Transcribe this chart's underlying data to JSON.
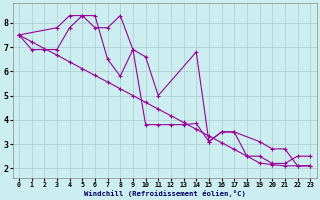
{
  "xlabel": "Windchill (Refroidissement éolien,°C)",
  "bg_color": "#cceef0",
  "grid_color": "#aacccc",
  "line_color": "#990099",
  "xlim": [
    -0.5,
    23.5
  ],
  "ylim": [
    1.6,
    8.8
  ],
  "yticks": [
    2,
    3,
    4,
    5,
    6,
    7,
    8
  ],
  "xticks": [
    0,
    1,
    2,
    3,
    4,
    5,
    6,
    7,
    8,
    9,
    10,
    11,
    12,
    13,
    14,
    15,
    16,
    17,
    18,
    19,
    20,
    21,
    22,
    23
  ],
  "series": [
    {
      "x": [
        0,
        1,
        2,
        3,
        4,
        5,
        6,
        7,
        8,
        9,
        10,
        11,
        12,
        13,
        14,
        15,
        16,
        17,
        18,
        19,
        20,
        21,
        22,
        23
      ],
      "y": [
        7.5,
        6.9,
        6.9,
        6.9,
        7.8,
        8.3,
        8.3,
        6.5,
        5.8,
        6.9,
        3.8,
        3.8,
        3.8,
        3.8,
        3.85,
        3.1,
        3.5,
        3.5,
        2.5,
        2.5,
        2.2,
        2.2,
        2.5,
        2.5
      ]
    },
    {
      "x": [
        0,
        1,
        2,
        3,
        4,
        5,
        6,
        7,
        8,
        9,
        10,
        11,
        12,
        13,
        14,
        15,
        16,
        17,
        18,
        19,
        20,
        21,
        22,
        23
      ],
      "y": [
        7.5,
        7.22,
        6.94,
        6.67,
        6.39,
        6.11,
        5.83,
        5.56,
        5.28,
        5.0,
        4.72,
        4.44,
        4.17,
        3.89,
        3.61,
        3.33,
        3.06,
        2.78,
        2.5,
        2.22,
        2.15,
        2.1,
        2.1,
        2.1
      ]
    },
    {
      "x": [
        0,
        3,
        4,
        5,
        6,
        7,
        8,
        9,
        10,
        11,
        14,
        15,
        16,
        17,
        19,
        20,
        21,
        22,
        23
      ],
      "y": [
        7.5,
        7.8,
        8.3,
        8.3,
        7.8,
        7.8,
        8.3,
        6.9,
        6.6,
        5.0,
        6.8,
        3.1,
        3.5,
        3.5,
        3.1,
        2.8,
        2.8,
        2.1,
        2.1
      ]
    }
  ]
}
